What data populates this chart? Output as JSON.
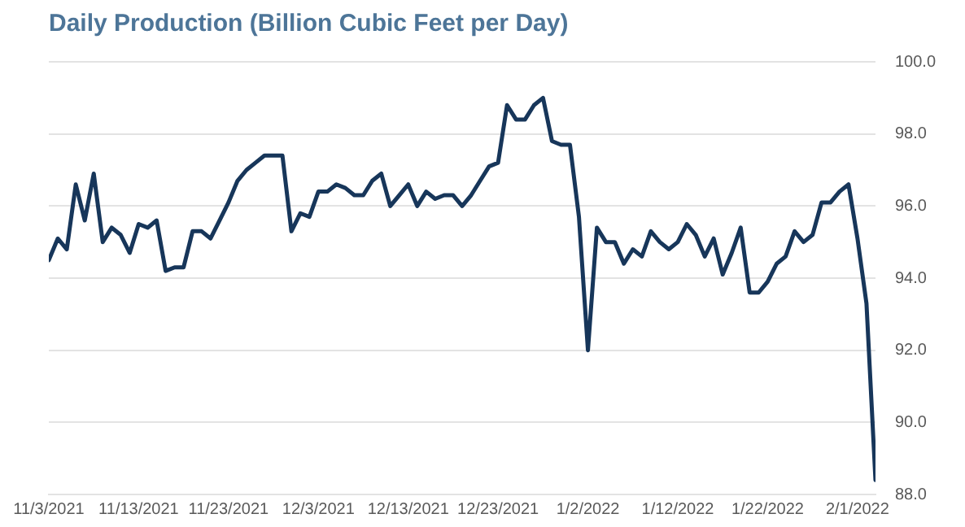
{
  "chart_data": {
    "type": "line",
    "title": "Daily Production (Billion Cubic Feet per Day)",
    "x": [
      "2021-11-03",
      "2021-11-04",
      "2021-11-05",
      "2021-11-06",
      "2021-11-07",
      "2021-11-08",
      "2021-11-09",
      "2021-11-10",
      "2021-11-11",
      "2021-11-12",
      "2021-11-13",
      "2021-11-14",
      "2021-11-15",
      "2021-11-16",
      "2021-11-17",
      "2021-11-18",
      "2021-11-19",
      "2021-11-20",
      "2021-11-21",
      "2021-11-22",
      "2021-11-23",
      "2021-11-24",
      "2021-11-25",
      "2021-11-26",
      "2021-11-27",
      "2021-11-28",
      "2021-11-29",
      "2021-11-30",
      "2021-12-01",
      "2021-12-02",
      "2021-12-03",
      "2021-12-04",
      "2021-12-05",
      "2021-12-06",
      "2021-12-07",
      "2021-12-08",
      "2021-12-09",
      "2021-12-10",
      "2021-12-11",
      "2021-12-12",
      "2021-12-13",
      "2021-12-14",
      "2021-12-15",
      "2021-12-16",
      "2021-12-17",
      "2021-12-18",
      "2021-12-19",
      "2021-12-20",
      "2021-12-21",
      "2021-12-22",
      "2021-12-23",
      "2021-12-24",
      "2021-12-25",
      "2021-12-26",
      "2021-12-27",
      "2021-12-28",
      "2021-12-29",
      "2021-12-30",
      "2021-12-31",
      "2022-01-01",
      "2022-01-02",
      "2022-01-03",
      "2022-01-04",
      "2022-01-05",
      "2022-01-06",
      "2022-01-07",
      "2022-01-08",
      "2022-01-09",
      "2022-01-10",
      "2022-01-11",
      "2022-01-12",
      "2022-01-13",
      "2022-01-14",
      "2022-01-15",
      "2022-01-16",
      "2022-01-17",
      "2022-01-18",
      "2022-01-19",
      "2022-01-20",
      "2022-01-21",
      "2022-01-22",
      "2022-01-23",
      "2022-01-24",
      "2022-01-25",
      "2022-01-26",
      "2022-01-27",
      "2022-01-28",
      "2022-01-29",
      "2022-01-30",
      "2022-01-31",
      "2022-02-01",
      "2022-02-02",
      "2022-02-03"
    ],
    "series": [
      {
        "color": "#17365a",
        "values": [
          94.5,
          95.1,
          94.8,
          96.6,
          95.6,
          96.9,
          95.0,
          95.4,
          95.2,
          94.7,
          95.5,
          95.4,
          95.6,
          94.2,
          94.3,
          94.3,
          95.3,
          95.3,
          95.1,
          95.6,
          96.1,
          96.7,
          97.0,
          97.2,
          97.4,
          97.4,
          97.4,
          95.3,
          95.8,
          95.7,
          96.4,
          96.4,
          96.6,
          96.5,
          96.3,
          96.3,
          96.7,
          96.9,
          96.0,
          96.3,
          96.6,
          96.0,
          96.4,
          96.2,
          96.3,
          96.3,
          96.0,
          96.3,
          96.7,
          97.1,
          97.2,
          98.8,
          98.4,
          98.4,
          98.8,
          99.0,
          97.8,
          97.7,
          97.7,
          95.7,
          92.0,
          95.4,
          95.0,
          95.0,
          94.4,
          94.8,
          94.6,
          95.3,
          95.0,
          94.8,
          95.0,
          95.5,
          95.2,
          94.6,
          95.1,
          94.1,
          94.7,
          95.4,
          93.6,
          93.6,
          93.9,
          94.4,
          94.6,
          95.3,
          95.0,
          95.2,
          96.1,
          96.1,
          96.4,
          96.6,
          95.1,
          93.3,
          88.4
        ]
      }
    ],
    "xlim": [
      "2021-11-03",
      "2022-02-03"
    ],
    "xticks": [
      {
        "value": "2021-11-03",
        "label": "11/3/2021"
      },
      {
        "value": "2021-11-13",
        "label": "11/13/2021"
      },
      {
        "value": "2021-11-23",
        "label": "11/23/2021"
      },
      {
        "value": "2021-12-03",
        "label": "12/3/2021"
      },
      {
        "value": "2021-12-13",
        "label": "12/13/2021"
      },
      {
        "value": "2021-12-23",
        "label": "12/23/2021"
      },
      {
        "value": "2022-01-02",
        "label": "1/2/2022"
      },
      {
        "value": "2022-01-12",
        "label": "1/12/2022"
      },
      {
        "value": "2022-01-22",
        "label": "1/22/2022"
      },
      {
        "value": "2022-02-01",
        "label": "2/1/2022"
      }
    ],
    "ylim": [
      88,
      100
    ],
    "yticks": [
      {
        "value": 88,
        "label": "88.0"
      },
      {
        "value": 90,
        "label": "90.0"
      },
      {
        "value": 92,
        "label": "92.0"
      },
      {
        "value": 94,
        "label": "94.0"
      },
      {
        "value": 96,
        "label": "96.0"
      },
      {
        "value": 98,
        "label": "98.0"
      },
      {
        "value": 100,
        "label": "100.0"
      }
    ],
    "grid": "y",
    "legend": false,
    "marker": "none",
    "line_style": "solid"
  }
}
